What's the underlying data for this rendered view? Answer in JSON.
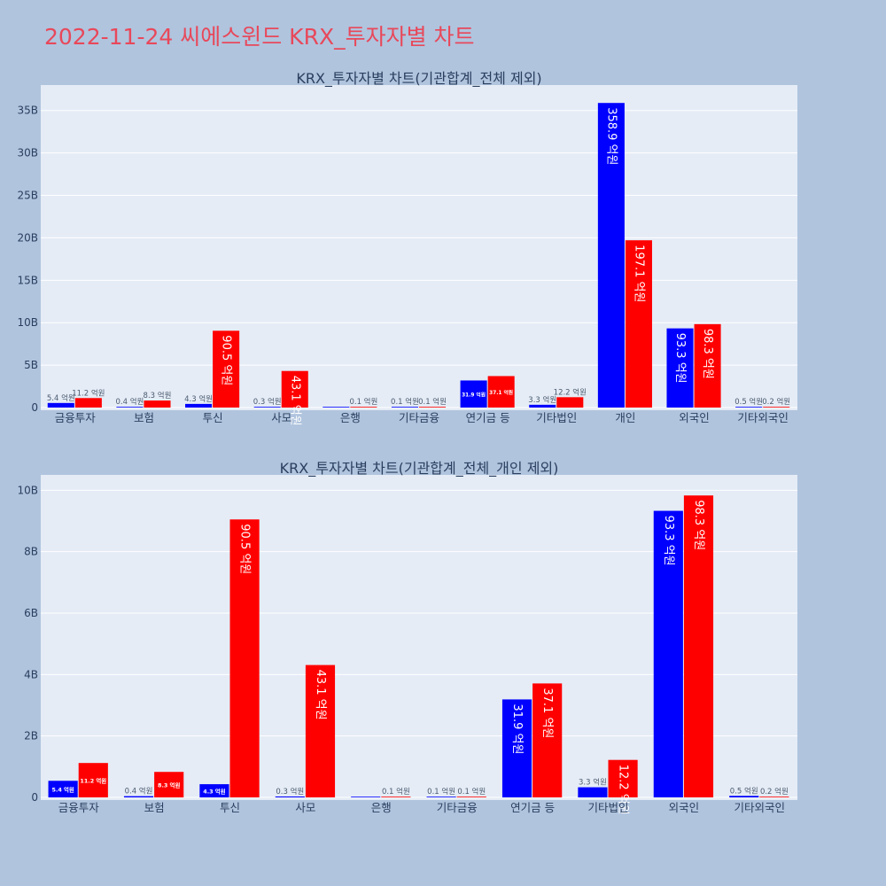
{
  "title": "2022-11-24 씨에스윈드 KRX_투자자별 차트",
  "colors": {
    "background": "#b0c4de",
    "plot_bg": "#e5ecf6",
    "title": "#e8485a",
    "series_a": "#0000ff",
    "series_b": "#ff0000",
    "text": "#2a3f5f"
  },
  "chart_data": [
    {
      "type": "bar",
      "title": "KRX_투자자별 차트(기관합계_전체 제외)",
      "categories": [
        "금융투자",
        "보험",
        "투신",
        "사모",
        "은행",
        "기타금융",
        "연기금 등",
        "기타법인",
        "개인",
        "외국인",
        "기타외국인"
      ],
      "series": [
        {
          "values": [
            0.54,
            0.04,
            0.43,
            0.03,
            0,
            0.01,
            3.19,
            0.33,
            35.89,
            9.33,
            0.05
          ]
        },
        {
          "values": [
            1.12,
            0.83,
            9.05,
            4.31,
            0.01,
            0.01,
            3.71,
            1.22,
            19.71,
            9.83,
            0.02
          ]
        }
      ],
      "data_labels": [
        [
          "5.4 억원",
          "0.4 억원",
          "4.3 억원",
          "0.3 억원",
          "",
          "0.1 억원",
          "31.9 억원",
          "3.3 억원",
          "358.9 억원",
          "93.3 억원",
          "0.5 억원"
        ],
        [
          "11.2 억원",
          "8.3 억원",
          "90.5 억원",
          "43.1 억원",
          "0.1 억원",
          "0.1 억원",
          "37.1 억원",
          "12.2 억원",
          "197.1 억원",
          "98.3 억원",
          "0.2 억원"
        ]
      ],
      "y_unit": "B",
      "ylim": [
        0,
        38
      ],
      "yticks": [
        0,
        5,
        10,
        15,
        20,
        25,
        30,
        35
      ],
      "ytick_labels": [
        "0",
        "5B",
        "10B",
        "15B",
        "20B",
        "25B",
        "30B",
        "35B"
      ]
    },
    {
      "type": "bar",
      "title": "KRX_투자자별 차트(기관합계_전체_개인 제외)",
      "categories": [
        "금융투자",
        "보험",
        "투신",
        "사모",
        "은행",
        "기타금융",
        "연기금 등",
        "기타법인",
        "외국인",
        "기타외국인"
      ],
      "series": [
        {
          "values": [
            0.54,
            0.04,
            0.43,
            0.03,
            0,
            0.01,
            3.19,
            0.33,
            9.33,
            0.05
          ]
        },
        {
          "values": [
            1.12,
            0.83,
            9.05,
            4.31,
            0.01,
            0.01,
            3.71,
            1.22,
            9.83,
            0.02
          ]
        }
      ],
      "data_labels": [
        [
          "5.4 억원",
          "0.4 억원",
          "4.3 억원",
          "0.3 억원",
          "",
          "0.1 억원",
          "31.9 억원",
          "3.3 억원",
          "93.3 억원",
          "0.5 억원"
        ],
        [
          "11.2 억원",
          "8.3 억원",
          "90.5 억원",
          "43.1 억원",
          "0.1 억원",
          "0.1 억원",
          "37.1 억원",
          "12.2 억원",
          "98.3 억원",
          "0.2 억원"
        ]
      ],
      "y_unit": "B",
      "ylim": [
        0,
        10.5
      ],
      "yticks": [
        0,
        2,
        4,
        6,
        8,
        10
      ],
      "ytick_labels": [
        "0",
        "2B",
        "4B",
        "6B",
        "8B",
        "10B"
      ]
    }
  ]
}
